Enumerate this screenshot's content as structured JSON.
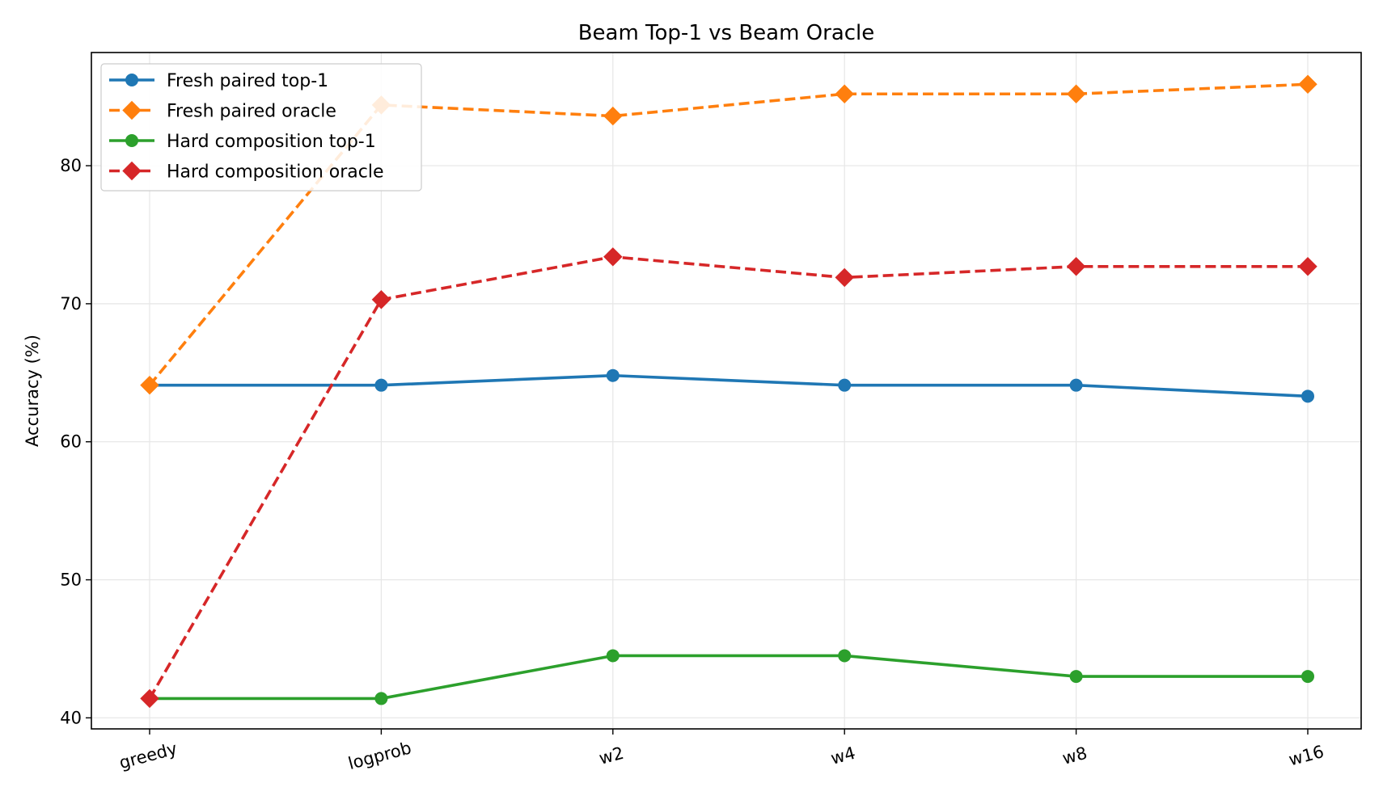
{
  "chart_data": {
    "type": "line",
    "title": "Beam Top-1 vs Beam Oracle",
    "xlabel": "",
    "ylabel": "Accuracy (%)",
    "categories": [
      "greedy",
      "logprob",
      "w2",
      "w4",
      "w8",
      "w16"
    ],
    "ylim": [
      39.2,
      88.2
    ],
    "yticks": [
      40,
      50,
      60,
      70,
      80
    ],
    "grid": true,
    "legend_position": "top-left",
    "series": [
      {
        "name": "Fresh paired top-1",
        "values": [
          64.1,
          64.1,
          64.8,
          64.1,
          64.1,
          63.3
        ],
        "color": "#1f77b4",
        "dash": "solid",
        "marker": "circle"
      },
      {
        "name": "Fresh paired oracle",
        "values": [
          64.1,
          84.4,
          83.6,
          85.2,
          85.2,
          85.9
        ],
        "color": "#ff7f0e",
        "dash": "dashed",
        "marker": "diamond"
      },
      {
        "name": "Hard composition top-1",
        "values": [
          41.4,
          41.4,
          44.5,
          44.5,
          43.0,
          43.0
        ],
        "color": "#2ca02c",
        "dash": "solid",
        "marker": "circle"
      },
      {
        "name": "Hard composition oracle",
        "values": [
          41.4,
          70.3,
          73.4,
          71.9,
          72.7,
          72.7
        ],
        "color": "#d62728",
        "dash": "dashed",
        "marker": "diamond"
      }
    ]
  }
}
